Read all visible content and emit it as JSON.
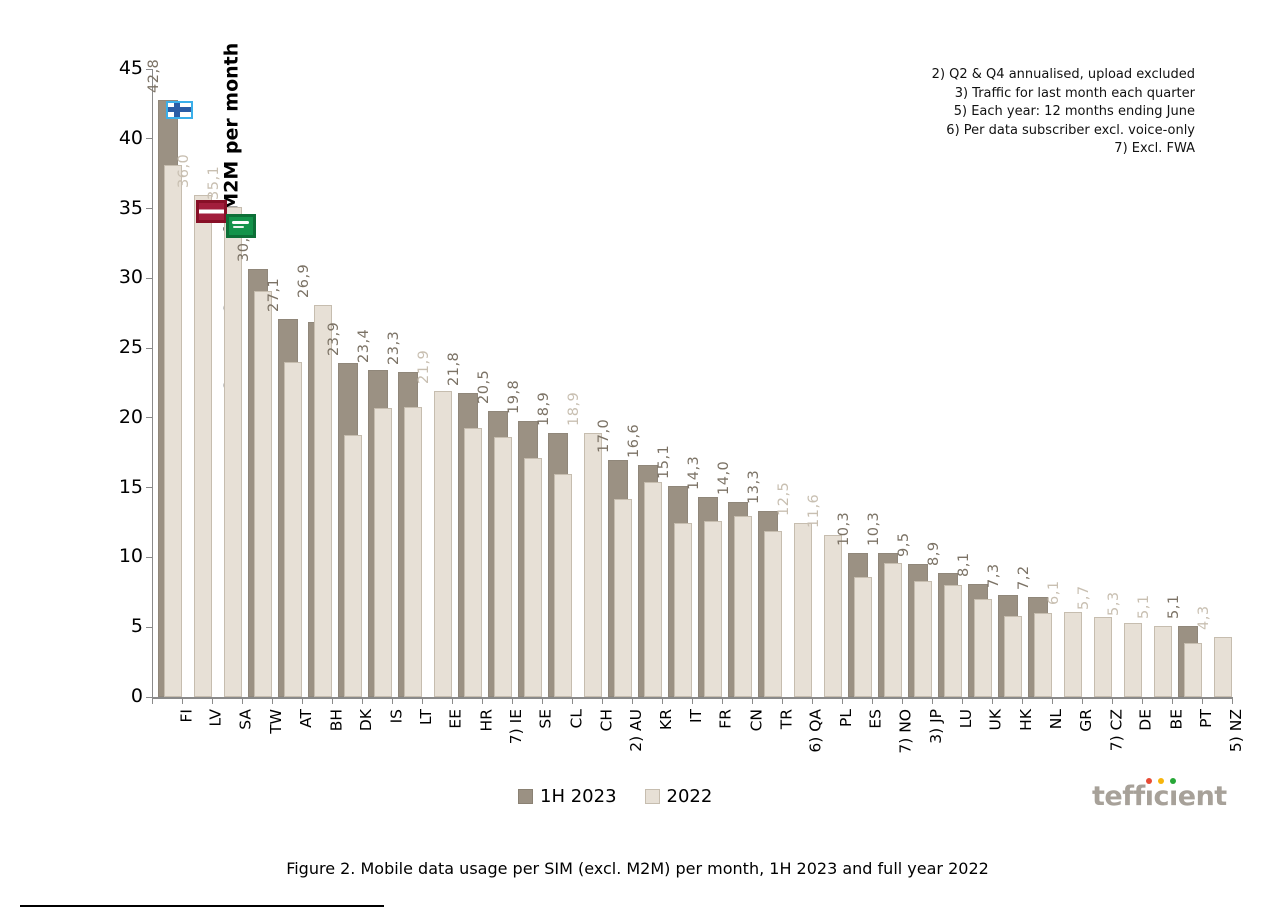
{
  "figure": {
    "caption": "Figure 2. Mobile data usage per SIM (excl. M2M) per month, 1H 2023 and full year 2022"
  },
  "footnotes": [
    "2) Q2 & Q4 annualised, upload excluded",
    "3) Traffic for last month each quarter",
    "5) Each year: 12 months ending June",
    "6) Per data subscriber excl. voice-only",
    "7) Excl. FWA"
  ],
  "legend": {
    "items": [
      {
        "label": "1H 2023",
        "color": "#9b9183"
      },
      {
        "label": "2022",
        "color": "#e7e0d6"
      }
    ]
  },
  "logo": {
    "p1": "teff",
    "p2": "ı",
    "p3": "c",
    "p4": "ı",
    "p5": "ent",
    "dot_colors": [
      "#e84b35",
      "#f7b50c",
      "#27a737"
    ],
    "text_color": "#a7a199"
  },
  "chart_data": {
    "type": "bar",
    "title": "",
    "xlabel": "",
    "ylabel": "GB per SIM excl. M2M per month",
    "ylim": [
      0,
      45
    ],
    "y_ticks": [
      0,
      5,
      10,
      15,
      20,
      25,
      30,
      35,
      40,
      45
    ],
    "grid": false,
    "legend_position": "bottom",
    "colors": {
      "1H 2023": "#9b9183",
      "2022": "#e7e0d6",
      "label_dark": "#7b7265",
      "label_light": "#c8bfb1"
    },
    "categories": [
      "FI",
      "LV",
      "SA",
      "TW",
      "AT",
      "BH",
      "DK",
      "IS",
      "LT",
      "EE",
      "HR",
      "7) IE",
      "SE",
      "CL",
      "CH",
      "2) AU",
      "KR",
      "IT",
      "FR",
      "CN",
      "TR",
      "6) QA",
      "PL",
      "ES",
      "7) NO",
      "3) JP",
      "LU",
      "UK",
      "HK",
      "NL",
      "GR",
      "7) CZ",
      "DE",
      "BE",
      "PT",
      "5) NZ"
    ],
    "series": [
      {
        "name": "1H 2023",
        "values": [
          42.8,
          null,
          null,
          30.7,
          27.1,
          26.9,
          23.9,
          23.4,
          23.3,
          null,
          21.8,
          20.5,
          19.8,
          18.9,
          null,
          17.0,
          16.6,
          15.1,
          14.3,
          14.0,
          13.3,
          null,
          null,
          10.3,
          10.3,
          9.5,
          8.9,
          8.1,
          7.3,
          7.2,
          null,
          null,
          null,
          null,
          5.1,
          null
        ]
      },
      {
        "name": "2022",
        "values": [
          38.1,
          36.0,
          35.1,
          29.1,
          24.0,
          28.1,
          18.8,
          20.7,
          20.8,
          21.9,
          19.3,
          18.6,
          17.1,
          16.0,
          18.9,
          14.2,
          15.4,
          12.5,
          12.6,
          13.0,
          11.9,
          12.5,
          11.6,
          8.6,
          9.6,
          8.3,
          8.0,
          7.0,
          5.8,
          6.0,
          6.1,
          5.7,
          5.3,
          5.1,
          3.9,
          4.3
        ]
      }
    ],
    "value_labels": [
      {
        "text": "42,8",
        "series": "1H 2023"
      },
      {
        "text": "36,0",
        "series": "2022"
      },
      {
        "text": "35,1",
        "series": "2022"
      },
      {
        "text": "30,7",
        "series": "1H 2023"
      },
      {
        "text": "27,1",
        "series": "1H 2023"
      },
      {
        "text": "26,9",
        "series": "1H 2023"
      },
      {
        "text": "23,9",
        "series": "1H 2023"
      },
      {
        "text": "23,4",
        "series": "1H 2023"
      },
      {
        "text": "23,3",
        "series": "1H 2023"
      },
      {
        "text": "21,9",
        "series": "2022"
      },
      {
        "text": "21,8",
        "series": "1H 2023"
      },
      {
        "text": "20,5",
        "series": "1H 2023"
      },
      {
        "text": "19,8",
        "series": "1H 2023"
      },
      {
        "text": "18,9",
        "series": "1H 2023"
      },
      {
        "text": "18,9",
        "series": "2022"
      },
      {
        "text": "17,0",
        "series": "1H 2023"
      },
      {
        "text": "16,6",
        "series": "1H 2023"
      },
      {
        "text": "15,1",
        "series": "1H 2023"
      },
      {
        "text": "14,3",
        "series": "1H 2023"
      },
      {
        "text": "14,0",
        "series": "1H 2023"
      },
      {
        "text": "13,3",
        "series": "1H 2023"
      },
      {
        "text": "12,5",
        "series": "2022"
      },
      {
        "text": "11,6",
        "series": "2022"
      },
      {
        "text": "10,3",
        "series": "1H 2023"
      },
      {
        "text": "10,3",
        "series": "1H 2023"
      },
      {
        "text": "9,5",
        "series": "1H 2023"
      },
      {
        "text": "8,9",
        "series": "1H 2023"
      },
      {
        "text": "8,1",
        "series": "1H 2023"
      },
      {
        "text": "7,3",
        "series": "1H 2023"
      },
      {
        "text": "7,2",
        "series": "1H 2023"
      },
      {
        "text": "6,1",
        "series": "2022"
      },
      {
        "text": "5,7",
        "series": "2022"
      },
      {
        "text": "5,3",
        "series": "2022"
      },
      {
        "text": "5,1",
        "series": "2022"
      },
      {
        "text": "5,1",
        "series": "1H 2023"
      },
      {
        "text": "4,3",
        "series": "2022"
      }
    ],
    "flag_markers": [
      {
        "country": "FI",
        "index": 0,
        "anchor_gb": 41.4
      },
      {
        "country": "LV",
        "index": 1,
        "anchor_gb": 34.0
      },
      {
        "country": "SA",
        "index": 2,
        "anchor_gb": 32.9
      }
    ]
  }
}
